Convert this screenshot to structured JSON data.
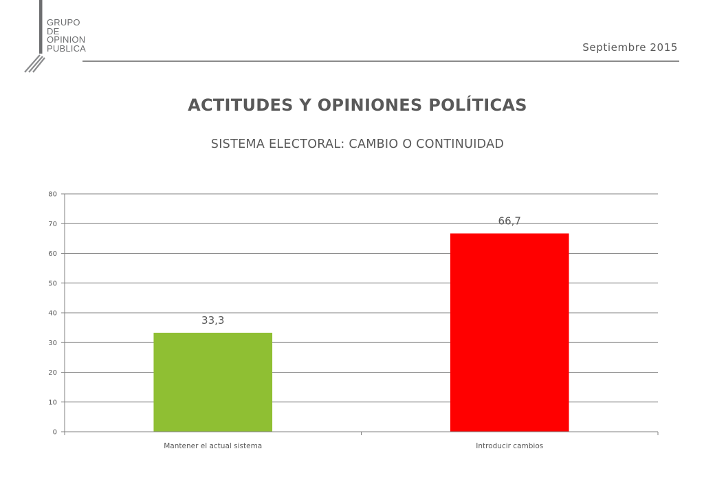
{
  "header": {
    "logo_lines": [
      "GRUPO",
      "DE",
      "OPINION",
      "PUBLICA"
    ],
    "date": "Septiembre 2015"
  },
  "title": "ACTITUDES Y OPINIONES POLÍTICAS",
  "subtitle": "SISTEMA ELECTORAL: CAMBIO O CONTINUIDAD",
  "colors": {
    "bar_green": "#8fbf33",
    "bar_red": "#ff0000",
    "grid": "#808080",
    "text": "#595959"
  },
  "chart_data": {
    "type": "bar",
    "categories": [
      "Mantener el actual sistema",
      "Introducir cambios"
    ],
    "values": [
      33.3,
      66.7
    ],
    "data_labels": [
      "33,3",
      "66,7"
    ],
    "bar_colors": [
      "#8fbf33",
      "#ff0000"
    ],
    "ylim": [
      0,
      80
    ],
    "yticks": [
      0,
      10,
      20,
      30,
      40,
      50,
      60,
      70,
      80
    ],
    "grid": true,
    "xlabel": "",
    "ylabel": ""
  }
}
